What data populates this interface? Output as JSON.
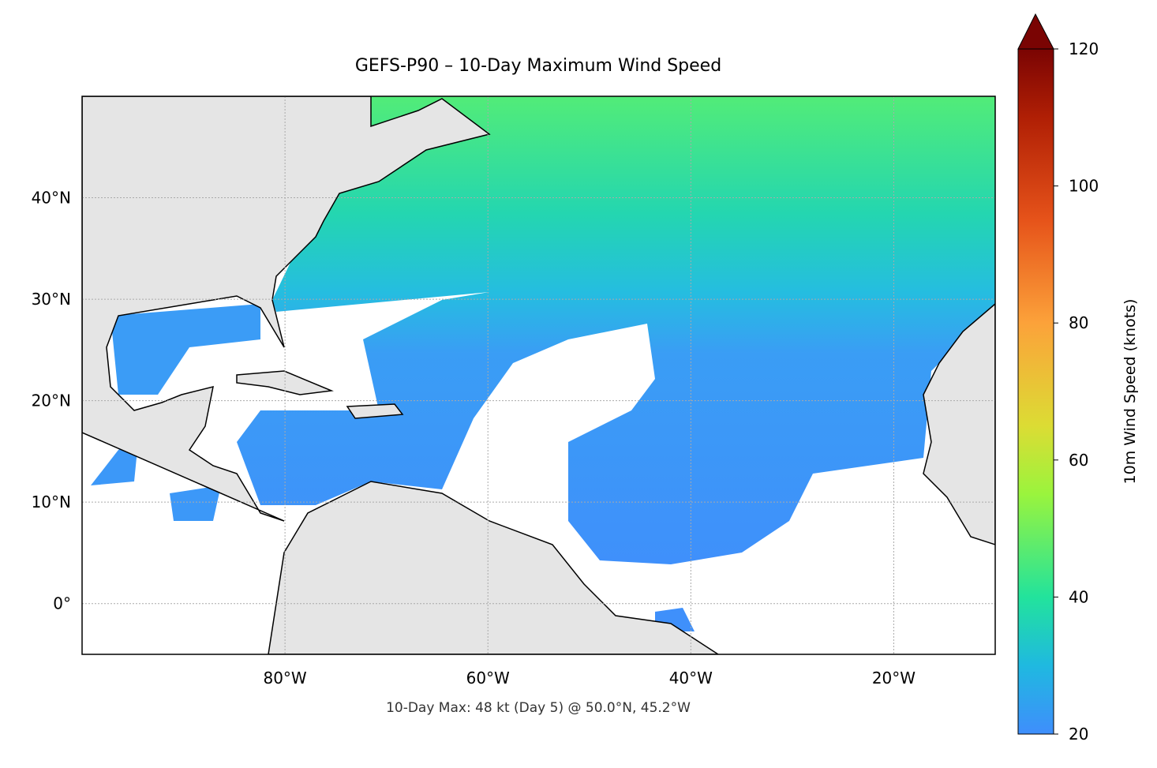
{
  "map": {
    "title": "GEFS-P90 – 10-Day Maximum Wind Speed",
    "annotation": "10-Day Max: 48 kt (Day 5) @ 50.0°N, 45.2°W",
    "xlim": [
      -100,
      -10
    ],
    "ylim": [
      -5,
      50
    ],
    "xticks": [
      {
        "value": -80,
        "label": "80°W"
      },
      {
        "value": -60,
        "label": "60°W"
      },
      {
        "value": -40,
        "label": "40°W"
      },
      {
        "value": -20,
        "label": "20°W"
      }
    ],
    "yticks": [
      {
        "value": 0,
        "label": "0°"
      },
      {
        "value": 10,
        "label": "10°N"
      },
      {
        "value": 20,
        "label": "20°N"
      },
      {
        "value": 30,
        "label": "30°N"
      },
      {
        "value": 40,
        "label": "40°N"
      }
    ],
    "grid": true,
    "colorbar": {
      "label": "10m Wind Speed (knots)",
      "lim": [
        20,
        120
      ],
      "ticks": [
        20,
        40,
        60,
        80,
        100,
        120
      ]
    }
  }
}
